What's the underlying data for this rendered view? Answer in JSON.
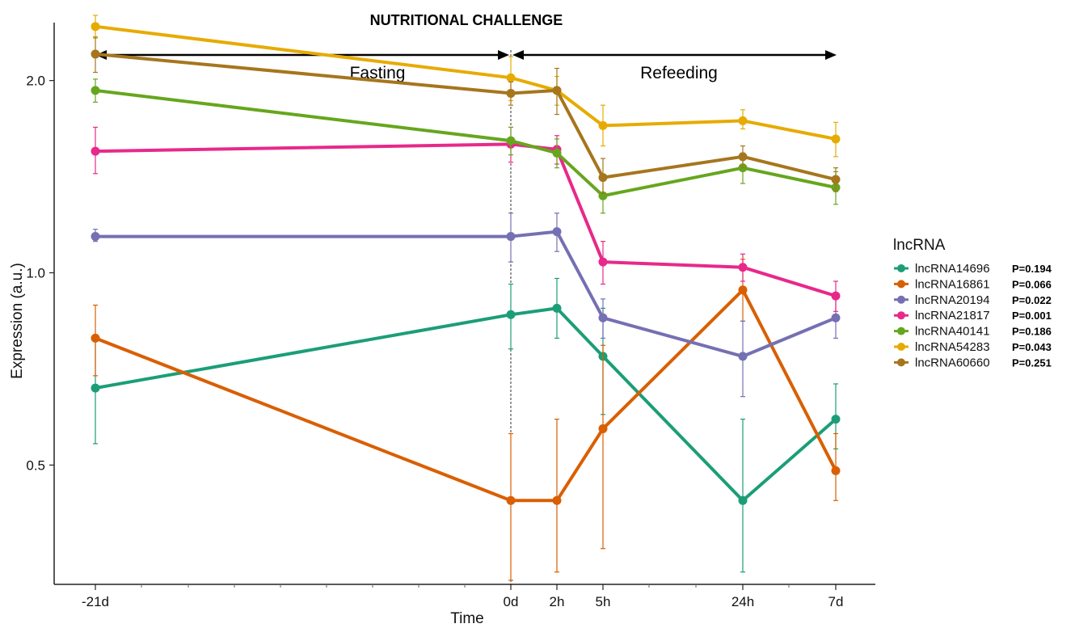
{
  "chart_data": {
    "type": "line",
    "header": "NUTRITIONAL CHALLENGE",
    "phases": [
      "Fasting",
      "Refeeding"
    ],
    "xlabel": "Time",
    "ylabel": "Expression (a.u.)",
    "x_labels": [
      "-21d",
      "0d",
      "2h",
      "5h",
      "24h",
      "7d"
    ],
    "y_ticks": [
      "0.5",
      "1.0",
      "2.0"
    ],
    "y_scale": "log",
    "ylim": [
      0.33,
      2.45
    ],
    "legend_title": "lncRNA",
    "legend_position": "right",
    "grid": false,
    "series": [
      {
        "name": "lncRNA14696",
        "p": "P=0.194",
        "color": "#1b9e77",
        "values": [
          0.66,
          0.86,
          0.88,
          0.74,
          0.44,
          0.59
        ],
        "lower": [
          0.54,
          0.76,
          0.79,
          0.6,
          0.34,
          0.53
        ],
        "upper": [
          0.79,
          0.96,
          0.98,
          0.88,
          0.59,
          0.67
        ]
      },
      {
        "name": "lncRNA16861",
        "p": "P=0.066",
        "color": "#d95f02",
        "values": [
          0.79,
          0.44,
          0.44,
          0.57,
          0.94,
          0.49
        ],
        "lower": [
          0.69,
          0.33,
          0.34,
          0.37,
          0.84,
          0.44
        ],
        "upper": [
          0.89,
          0.56,
          0.59,
          0.77,
          1.05,
          0.56
        ]
      },
      {
        "name": "lncRNA20194",
        "p": "P=0.022",
        "color": "#7570b3",
        "values": [
          1.14,
          1.14,
          1.16,
          0.85,
          0.74,
          0.85
        ],
        "lower": [
          1.12,
          1.04,
          1.08,
          0.79,
          0.64,
          0.79
        ],
        "upper": [
          1.17,
          1.24,
          1.24,
          0.91,
          0.84,
          0.91
        ]
      },
      {
        "name": "lncRNA21817",
        "p": "P=0.001",
        "color": "#e7298a",
        "values": [
          1.55,
          1.59,
          1.56,
          1.04,
          1.02,
          0.92
        ],
        "lower": [
          1.43,
          1.49,
          1.48,
          0.96,
          0.97,
          0.87
        ],
        "upper": [
          1.69,
          1.69,
          1.64,
          1.12,
          1.07,
          0.97
        ]
      },
      {
        "name": "lncRNA40141",
        "p": "P=0.186",
        "color": "#66a61e",
        "values": [
          1.93,
          1.61,
          1.54,
          1.32,
          1.46,
          1.36
        ],
        "lower": [
          1.85,
          1.53,
          1.46,
          1.24,
          1.38,
          1.28
        ],
        "upper": [
          2.01,
          1.69,
          1.62,
          1.4,
          1.54,
          1.44
        ]
      },
      {
        "name": "lncRNA54283",
        "p": "P=0.043",
        "color": "#e6ab02",
        "values": [
          2.43,
          2.02,
          1.93,
          1.7,
          1.73,
          1.62
        ],
        "lower": [
          2.33,
          1.86,
          1.83,
          1.58,
          1.68,
          1.52
        ],
        "upper": [
          2.53,
          2.18,
          2.03,
          1.83,
          1.8,
          1.72
        ]
      },
      {
        "name": "lncRNA60660",
        "p": "P=0.251",
        "color": "#a6761d",
        "values": [
          2.2,
          1.91,
          1.93,
          1.41,
          1.52,
          1.4
        ],
        "lower": [
          2.06,
          1.83,
          1.77,
          1.33,
          1.46,
          1.34
        ],
        "upper": [
          2.34,
          1.99,
          2.09,
          1.51,
          1.58,
          1.46
        ]
      }
    ]
  }
}
